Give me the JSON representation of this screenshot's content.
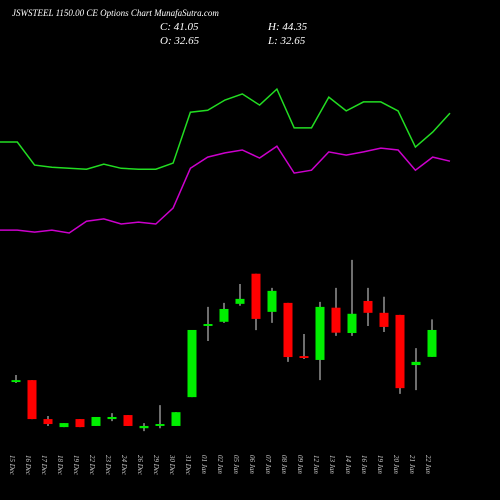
{
  "chart_data": {
    "type": "candlestick",
    "title": "JSWSTEEL 1150.00 CE Options Chart MunafaSutra.com",
    "ohlc_labels": [
      "C: 41.05",
      "H: 44.35",
      "O: 32.65",
      "L: 32.65"
    ],
    "categories": [
      "15 Dec",
      "16 Dec",
      "17 Dec",
      "18 Dec",
      "19 Dec",
      "22 Dec",
      "23 Dec",
      "24 Dec",
      "26 Dec",
      "29 Dec",
      "30 Dec",
      "31 Dec",
      "01 Jan",
      "02 Jan",
      "05 Jan",
      "06 Jan",
      "07 Jan",
      "08 Jan",
      "09 Jan",
      "12 Jan",
      "13 Jan",
      "14 Jan",
      "16 Jan",
      "19 Jan",
      "20 Jan",
      "21 Jan",
      "22 Jan"
    ],
    "open": [
      24.8,
      25.4,
      13.25,
      10.75,
      13.25,
      11.1,
      13.25,
      14.5,
      10.4,
      11.1,
      11.1,
      20.1,
      42.3,
      43.6,
      49.2,
      58.6,
      46.7,
      49.5,
      32.9,
      31.7,
      48.0,
      40.1,
      50.1,
      46.4,
      45.75,
      30.1,
      32.65
    ],
    "high": [
      27.0,
      25.4,
      14.2,
      12.0,
      13.25,
      13.9,
      15.1,
      14.5,
      12.0,
      17.6,
      15.4,
      41.05,
      48.25,
      49.5,
      55.4,
      58.6,
      54.2,
      49.5,
      39.8,
      49.8,
      54.2,
      62.9,
      54.2,
      51.4,
      45.75,
      35.4,
      44.35
    ],
    "low": [
      24.5,
      13.25,
      11.1,
      10.75,
      10.75,
      11.1,
      12.6,
      11.1,
      9.5,
      10.4,
      11.1,
      20.1,
      37.6,
      43.25,
      48.6,
      41.0,
      43.25,
      31.1,
      32.0,
      25.4,
      39.2,
      39.2,
      42.3,
      40.4,
      21.1,
      22.3,
      32.65
    ],
    "close": [
      25.4,
      13.25,
      11.7,
      12.0,
      10.75,
      13.9,
      13.9,
      11.1,
      11.1,
      11.7,
      15.4,
      41.05,
      42.9,
      47.6,
      50.75,
      44.5,
      53.25,
      32.6,
      32.3,
      48.25,
      40.2,
      46.1,
      46.4,
      42.0,
      22.9,
      31.1,
      41.05
    ],
    "up_color": "#00ee00",
    "down_color": "#ff0000",
    "series": [
      {
        "color": "#22dd22",
        "values": [
          99.7,
          99.7,
          92.5,
          91.8,
          91.5,
          91.2,
          92.8,
          91.5,
          91.2,
          91.2,
          93.1,
          109.0,
          109.6,
          112.8,
          114.7,
          111.2,
          116.2,
          104.1,
          104.1,
          113.7,
          109.4,
          112.2,
          112.2,
          109.4,
          98.1,
          102.8,
          108.7
        ]
      },
      {
        "color": "#cc00cc",
        "values": [
          72.2,
          72.2,
          71.6,
          72.2,
          71.3,
          75.0,
          75.7,
          74.1,
          74.7,
          74.1,
          79.1,
          91.5,
          95.0,
          96.3,
          97.2,
          94.7,
          98.4,
          90.0,
          90.9,
          96.6,
          95.6,
          96.6,
          97.8,
          97.2,
          90.9,
          95.0,
          93.7
        ]
      }
    ],
    "ylim": [
      -12,
      144
    ]
  }
}
